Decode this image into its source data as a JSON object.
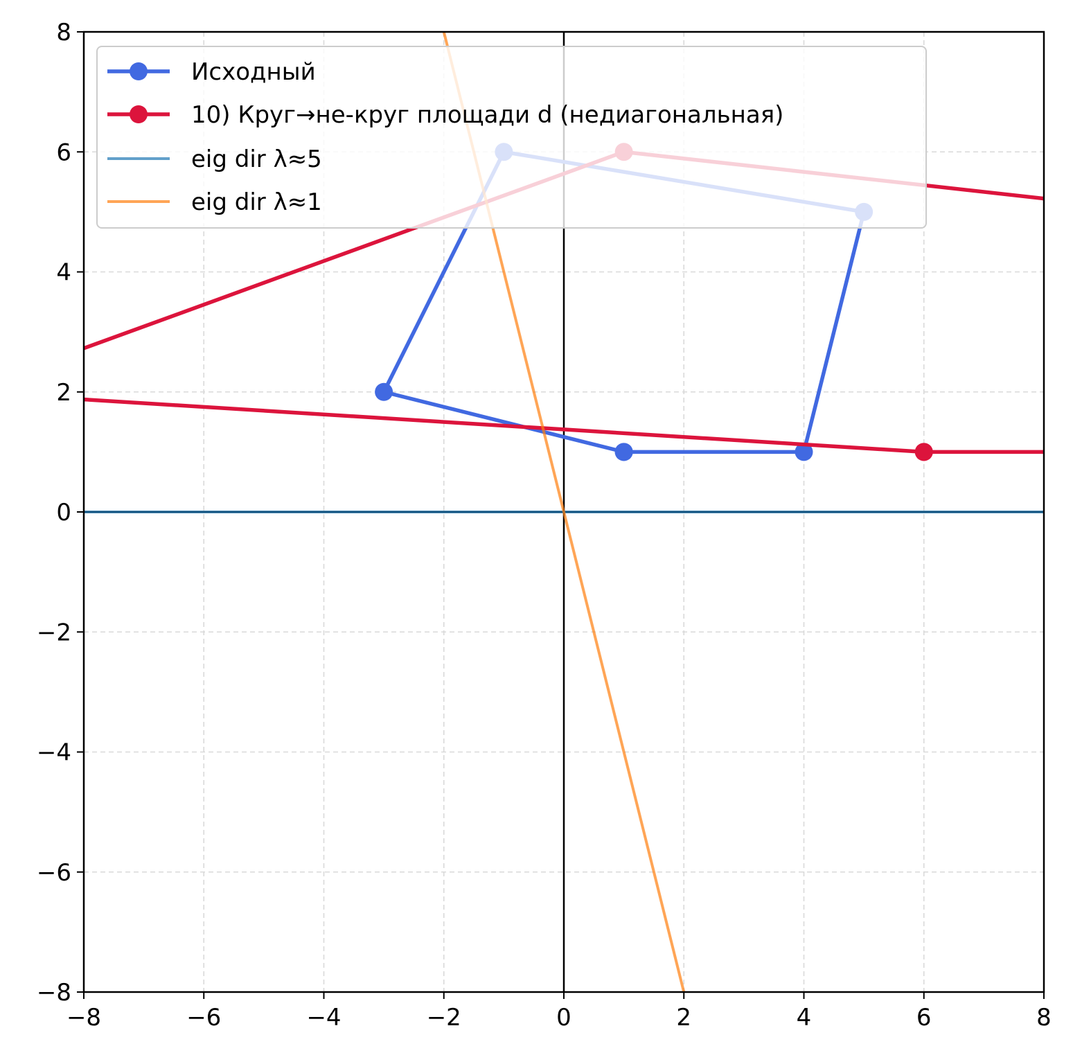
{
  "chart_data": {
    "type": "line",
    "title": "",
    "xlabel": "",
    "ylabel": "",
    "xlim": [
      -8,
      8
    ],
    "ylim": [
      -8,
      8
    ],
    "grid": true,
    "legend_position": "top-left",
    "xticks": [
      -8,
      -6,
      -4,
      -2,
      0,
      2,
      4,
      6,
      8
    ],
    "yticks": [
      -8,
      -6,
      -4,
      -2,
      0,
      2,
      4,
      6,
      8
    ],
    "xtick_labels": [
      "−8",
      "−6",
      "−4",
      "−2",
      "0",
      "2",
      "4",
      "6",
      "8"
    ],
    "ytick_labels": [
      "−8",
      "−6",
      "−4",
      "−2",
      "0",
      "2",
      "4",
      "6",
      "8"
    ],
    "series": [
      {
        "name": "Исходный",
        "color": "#4169e1",
        "marker": "circle",
        "x": [
          1,
          4,
          5,
          -1,
          -3,
          1
        ],
        "y": [
          1,
          1,
          5,
          6,
          2,
          1
        ]
      },
      {
        "name": "10) Круг→не-круг площади d (недиагональная)",
        "color": "#dc143c",
        "marker": "circle",
        "x": [
          6,
          9,
          10,
          1,
          -10,
          6
        ],
        "y": [
          1,
          1,
          5,
          6,
          2,
          1
        ]
      },
      {
        "name": "eig dir λ≈5",
        "color": "#1f77b4",
        "marker": "none",
        "x": [
          -8,
          8
        ],
        "y": [
          0,
          0
        ]
      },
      {
        "name": "eig dir λ≈1",
        "color": "#ff7f0e",
        "marker": "none",
        "x": [
          -2,
          2
        ],
        "y": [
          8,
          -8
        ]
      }
    ]
  }
}
